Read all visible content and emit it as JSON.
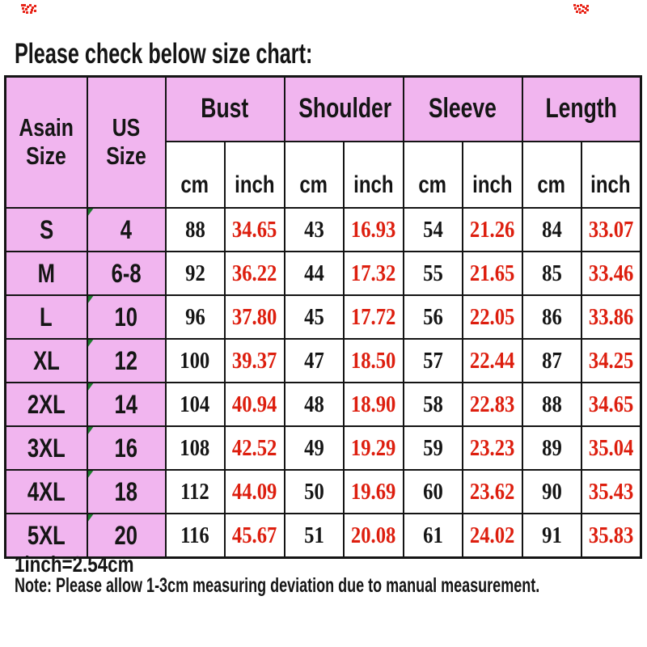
{
  "title": "Please check below size chart:",
  "footer": {
    "conversion": "1inch=2.54cm",
    "note": "Note: Please allow 1-3cm measuring deviation due to manual measurement."
  },
  "colors": {
    "header_pink": "#f1b5ef",
    "inch_value_red": "#dd1e0e",
    "text_black": "#151515",
    "table_border": "#141414",
    "green_marker": "#1d7c2e",
    "red_glitch": "#e8261a"
  },
  "icons": {
    "green_corner_marker": "triangle-wedge",
    "red_corner_glitch": "pixel-noise"
  },
  "chart_data": {
    "type": "table",
    "title": "Please check below size chart:",
    "group_columns": [
      {
        "label": "Asain Size"
      },
      {
        "label": "US Size"
      },
      {
        "label": "Bust"
      },
      {
        "label": "Shoulder"
      },
      {
        "label": "Sleeve"
      },
      {
        "label": "Length"
      }
    ],
    "sub_columns": [
      "cm",
      "inch",
      "cm",
      "inch",
      "cm",
      "inch",
      "cm",
      "inch"
    ],
    "rows": [
      {
        "asain": "S",
        "us": "4",
        "mark": true,
        "values": [
          "88",
          "34.65",
          "43",
          "16.93",
          "54",
          "21.26",
          "84",
          "33.07"
        ]
      },
      {
        "asain": "M",
        "us": "6-8",
        "mark": false,
        "values": [
          "92",
          "36.22",
          "44",
          "17.32",
          "55",
          "21.65",
          "85",
          "33.46"
        ]
      },
      {
        "asain": "L",
        "us": "10",
        "mark": true,
        "values": [
          "96",
          "37.80",
          "45",
          "17.72",
          "56",
          "22.05",
          "86",
          "33.86"
        ]
      },
      {
        "asain": "XL",
        "us": "12",
        "mark": true,
        "values": [
          "100",
          "39.37",
          "47",
          "18.50",
          "57",
          "22.44",
          "87",
          "34.25"
        ]
      },
      {
        "asain": "2XL",
        "us": "14",
        "mark": true,
        "values": [
          "104",
          "40.94",
          "48",
          "18.90",
          "58",
          "22.83",
          "88",
          "34.65"
        ]
      },
      {
        "asain": "3XL",
        "us": "16",
        "mark": true,
        "values": [
          "108",
          "42.52",
          "49",
          "19.29",
          "59",
          "23.23",
          "89",
          "35.04"
        ]
      },
      {
        "asain": "4XL",
        "us": "18",
        "mark": true,
        "values": [
          "112",
          "44.09",
          "50",
          "19.69",
          "60",
          "23.62",
          "90",
          "35.43"
        ]
      },
      {
        "asain": "5XL",
        "us": "20",
        "mark": true,
        "values": [
          "116",
          "45.67",
          "51",
          "20.08",
          "61",
          "24.02",
          "91",
          "35.83"
        ]
      }
    ]
  }
}
